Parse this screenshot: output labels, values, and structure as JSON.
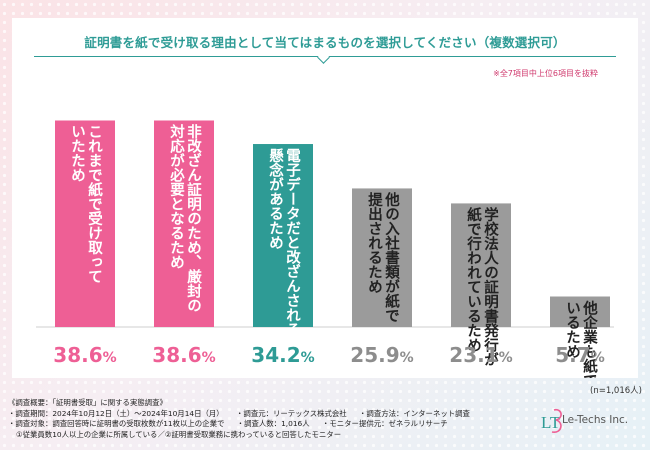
{
  "chart_data": {
    "type": "bar",
    "title": "証明書を紙で受け取る理由として当てはまるものを選択してください（複数選択可）",
    "note": "※全7項目中上位6項目を抜粋",
    "categories": [
      "これまで紙で受け取っていたため",
      "非改ざん証明のため、厳封の対応が必要となるため",
      "電子データだと改ざんされる懸念があるため",
      "他の入社書類が紙で提出されるため",
      "学校法人の証明書発行が紙で行われているため",
      "他企業も紙で受け取っているため"
    ],
    "label_lines": [
      [
        "これまで紙で受け取って",
        "いたため"
      ],
      [
        "非改ざん証明のため、厳封の",
        "対応が必要となるため"
      ],
      [
        "電子データだと改ざんされる",
        "懸念があるため"
      ],
      [
        "他の入社書類が紙で",
        "提出されるため"
      ],
      [
        "学校法人の証明書発行が",
        "紙で行われているため"
      ],
      [
        "他企業も紙で受け取って",
        "いるため"
      ]
    ],
    "values": [
      38.6,
      38.6,
      34.2,
      25.9,
      23.1,
      5.7
    ],
    "value_labels": [
      "38.6",
      "38.6",
      "34.2",
      "25.9",
      "23.1",
      "5.7"
    ],
    "unit": "%",
    "ylim": [
      0,
      40
    ],
    "bar_colors": [
      "#ee5f95",
      "#ee5f95",
      "#2e9b95",
      "#9b9b9b",
      "#9b9b9b",
      "#9b9b9b"
    ],
    "text_colors": [
      "#ee5f95",
      "#ee5f95",
      "#2e9b95",
      "#8d8d8d",
      "#8d8d8d",
      "#8d8d8d"
    ],
    "label_colors": [
      "#ffffff",
      "#ffffff",
      "#ffffff",
      "#222222",
      "#222222",
      "#222222"
    ]
  },
  "sample_size": "(n=1,016人)",
  "footer": {
    "heading": "《調査概要：「証明書受取」に関する実態調査》",
    "line1_a": "・調査期間：2024年10月12日（土）～2024年10月14日（月）",
    "line1_b": "・調査元：リーテックス株式会社",
    "line1_c": "・調査方法：インターネット調査",
    "line2_a": "・調査対象：調査回答時に証明書の受取枚数が11枚以上の企業で",
    "line2_b": "・調査人数：1,016人",
    "line2_c": "・モニター提供元：ゼネラルリサーチ",
    "line3": "①従業員数10人以上の企業に所属している／②証明書受取業務に携わっていると回答したモニター"
  },
  "logo": {
    "mark": "LT",
    "name": "Le-Techs Inc."
  }
}
